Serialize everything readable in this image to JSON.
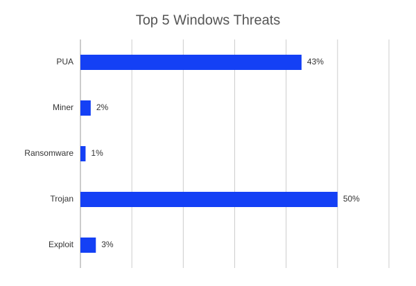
{
  "chart_data": {
    "type": "barh",
    "title": "Top 5 Windows Threats",
    "categories": [
      "PUA",
      "Miner",
      "Ransomware",
      "Trojan",
      "Exploit"
    ],
    "values": [
      43,
      2,
      1,
      50,
      3
    ],
    "value_labels": [
      "43%",
      "2%",
      "1%",
      "50%",
      "3%"
    ],
    "color": "#1440f5",
    "xlim": [
      0,
      60
    ],
    "xticks": [
      0,
      10,
      20,
      30,
      40,
      50,
      60
    ],
    "grid": true
  }
}
